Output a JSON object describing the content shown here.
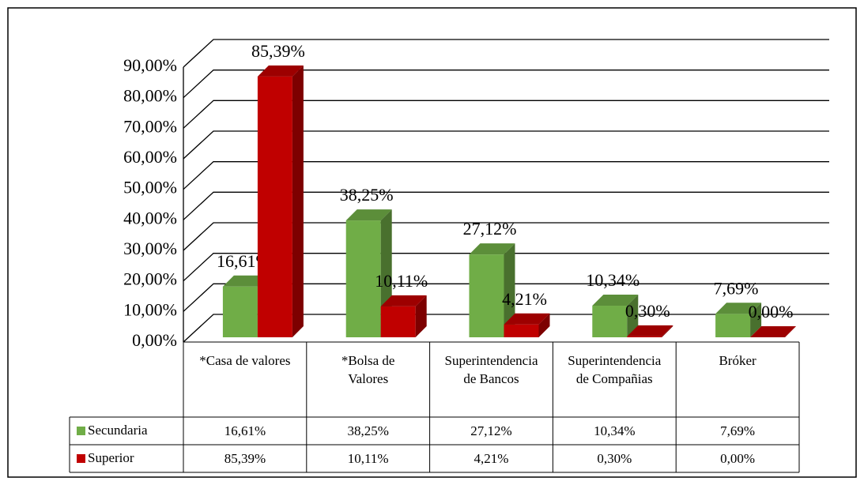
{
  "chart_data": {
    "type": "bar3d",
    "categories": [
      "*Casa de valores",
      "*Bolsa de Valores",
      "Superintendencia de Bancos",
      "Superintendencia de Compañias",
      "Bróker"
    ],
    "series": [
      {
        "name": "Secundaria",
        "color": "#70ad47",
        "values": [
          16.61,
          38.25,
          27.12,
          10.34,
          7.69
        ],
        "value_labels": [
          "16,61%",
          "38,25%",
          "27,12%",
          "10,34%",
          "7,69%"
        ]
      },
      {
        "name": "Superior",
        "color": "#c00000",
        "values": [
          85.39,
          10.11,
          4.21,
          0.3,
          0.0
        ],
        "value_labels": [
          "85,39%",
          "10,11%",
          "4,21%",
          "0,30%",
          "0,00%"
        ]
      }
    ],
    "ylim": [
      0,
      90
    ],
    "yticks": [
      {
        "value": 0,
        "label": "0,00%"
      },
      {
        "value": 10,
        "label": "10,00%"
      },
      {
        "value": 20,
        "label": "20,00%"
      },
      {
        "value": 30,
        "label": "30,00%"
      },
      {
        "value": 40,
        "label": "40,00%"
      },
      {
        "value": 50,
        "label": "50,00%"
      },
      {
        "value": 60,
        "label": "60,00%"
      },
      {
        "value": 70,
        "label": "70,00%"
      },
      {
        "value": 80,
        "label": "80,00%"
      },
      {
        "value": 90,
        "label": "90,00%"
      }
    ],
    "grid": true,
    "data_table": true
  }
}
